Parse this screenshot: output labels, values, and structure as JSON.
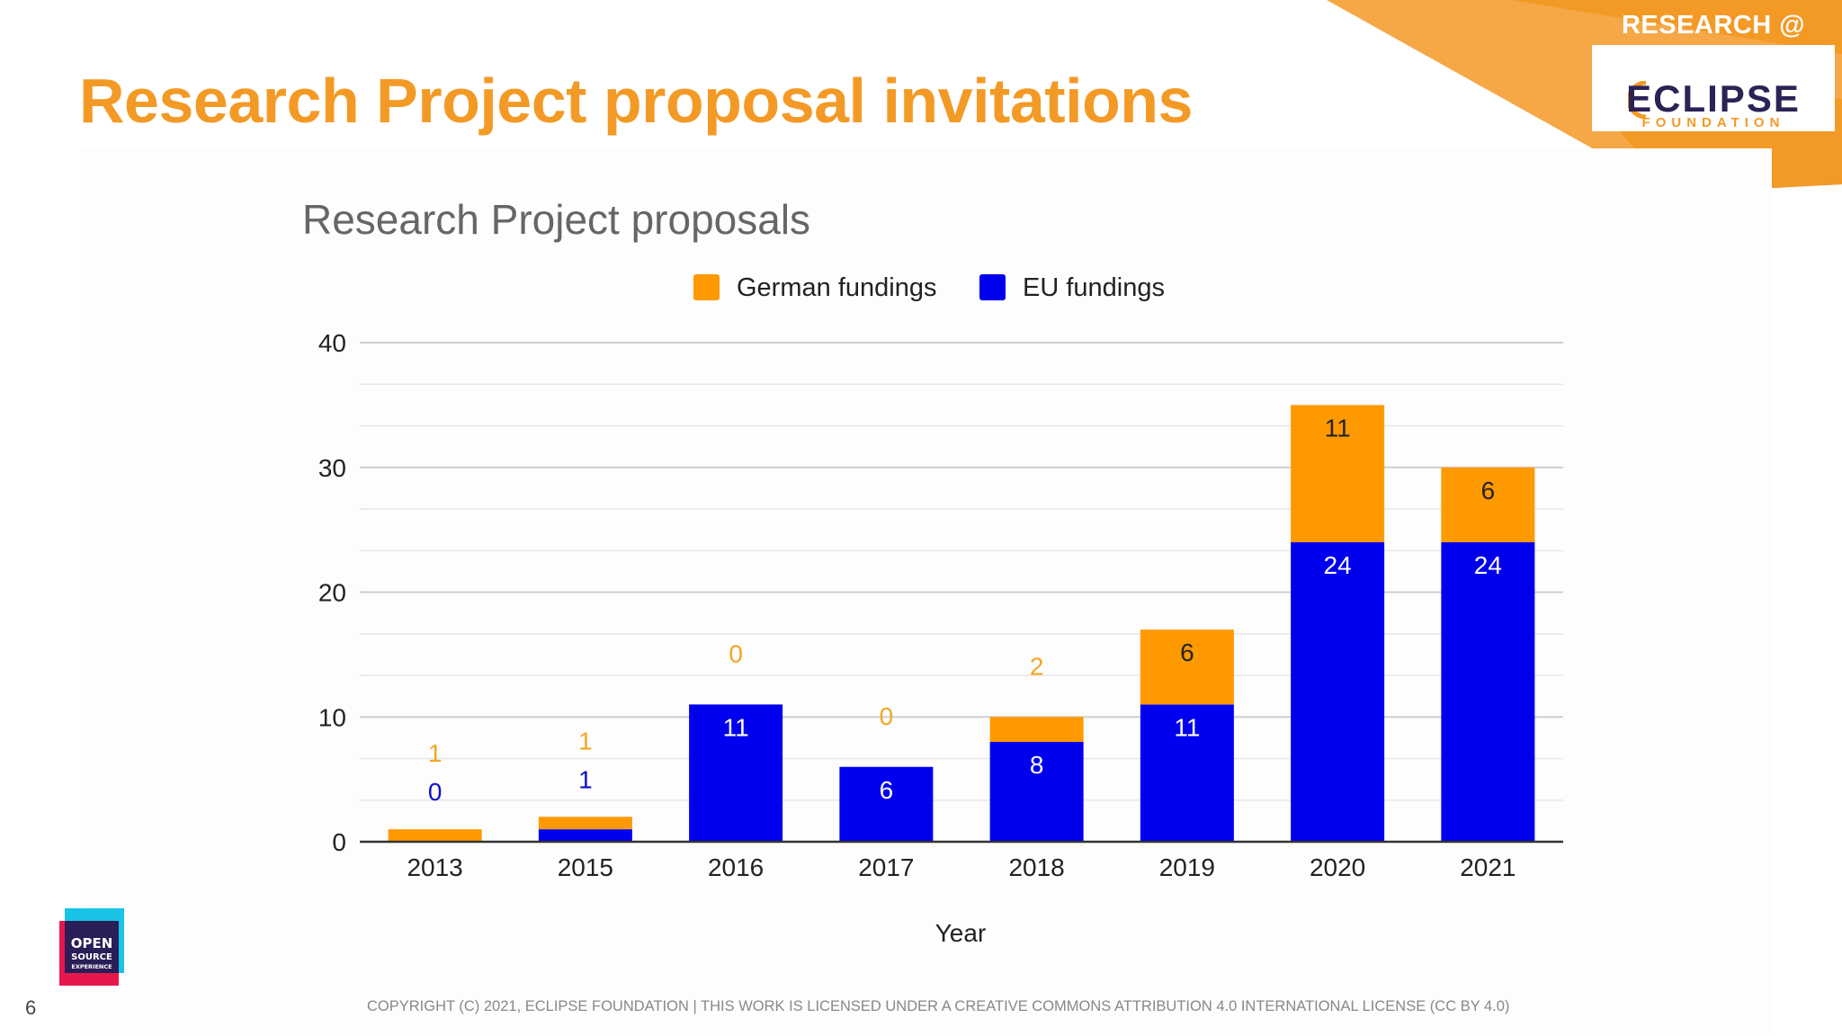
{
  "slide": {
    "title": "Research Project proposal invitations",
    "page_number": "6",
    "copyright": "COPYRIGHT (C) 2021, ECLIPSE FOUNDATION  |  THIS WORK IS LICENSED UNDER A CREATIVE COMMONS ATTRIBUTION 4.0 INTERNATIONAL LICENSE (CC BY 4.0)"
  },
  "branding": {
    "research_tag": "RESEARCH @",
    "logo_word": "ECLIPSE",
    "logo_subword": "FOUNDATION",
    "ose_logo_lines": [
      "OPEN",
      "SOURCE",
      "EXPERIENCE"
    ]
  },
  "colors": {
    "accent": "#f39a26",
    "german": "#ff9900",
    "eu": "#0000ee",
    "label_german": "#f3a623",
    "label_eu": "#1010c8",
    "title_gray": "#666666"
  },
  "chart_data": {
    "type": "bar",
    "stacked": true,
    "title": "Research Project proposals",
    "xlabel": "Year",
    "ylabel": "",
    "ylim": [
      0,
      40
    ],
    "yticks": [
      0,
      10,
      20,
      30,
      40
    ],
    "minor_gridlines": true,
    "legend_position": "top",
    "categories": [
      "2013",
      "2015",
      "2016",
      "2017",
      "2018",
      "2019",
      "2020",
      "2021"
    ],
    "series": [
      {
        "name": "German fundings",
        "color": "#ff9900",
        "values": [
          1,
          1,
          0,
          0,
          2,
          6,
          11,
          6
        ]
      },
      {
        "name": "EU fundings",
        "color": "#0000ee",
        "values": [
          0,
          1,
          11,
          6,
          8,
          11,
          24,
          24
        ]
      }
    ],
    "stack_order": [
      "EU fundings",
      "German fundings"
    ]
  }
}
